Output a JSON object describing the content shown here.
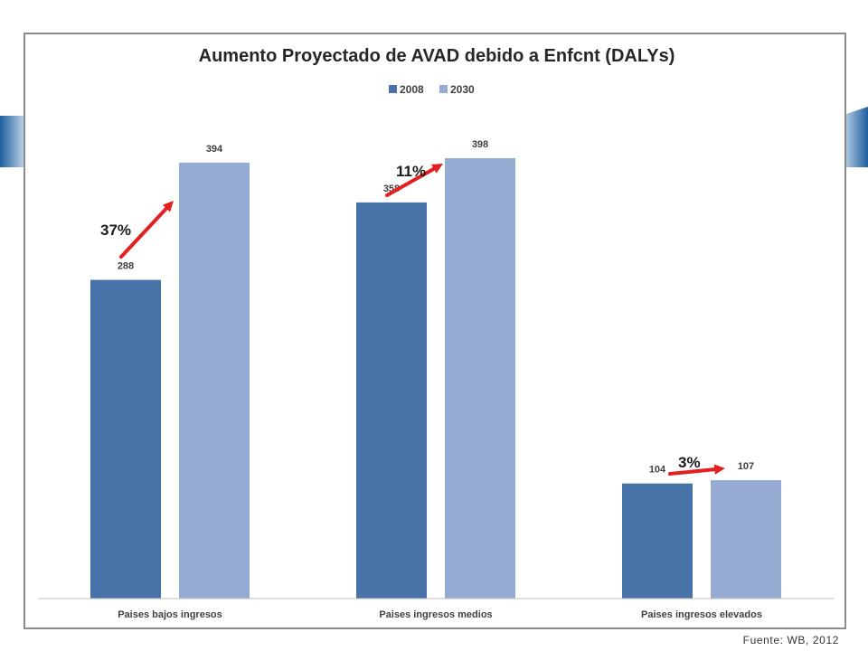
{
  "source_note": "Fuente: WB, 2012",
  "colors": {
    "series_2008": "#4672a7",
    "series_2030": "#96abd2",
    "arrow": "#e31f1f",
    "axis": "#bfbfbf",
    "frame": "#8c8c8c"
  },
  "chart_data": {
    "type": "bar",
    "title": "Aumento Proyectado de AVAD debido a Enfcnt (DALYs)",
    "xlabel": "",
    "ylabel": "",
    "ylim": [
      0,
      420
    ],
    "grid": false,
    "legend_position": "top-center",
    "categories": [
      "Paises bajos ingresos",
      "Paises ingresos medios",
      "Paises ingresos elevados"
    ],
    "series": [
      {
        "name": "2008",
        "values": [
          288,
          358,
          104
        ]
      },
      {
        "name": "2030",
        "values": [
          394,
          398,
          107
        ]
      }
    ],
    "annotations": [
      {
        "label": "37%",
        "category": "Paises bajos ingresos"
      },
      {
        "label": "11%",
        "category": "Paises ingresos medios"
      },
      {
        "label": "3%",
        "category": "Paises ingresos elevados"
      }
    ]
  }
}
